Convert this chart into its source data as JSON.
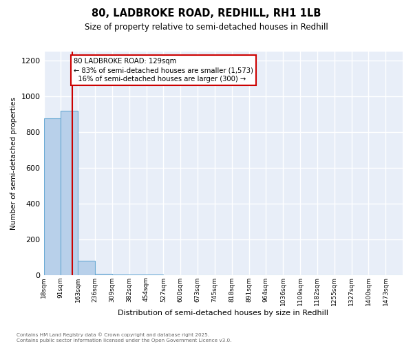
{
  "title1": "80, LADBROKE ROAD, REDHILL, RH1 1LB",
  "title2": "Size of property relative to semi-detached houses in Redhill",
  "xlabel": "Distribution of semi-detached houses by size in Redhill",
  "ylabel": "Number of semi-detached properties",
  "bin_labels": [
    "18sqm",
    "91sqm",
    "163sqm",
    "236sqm",
    "309sqm",
    "382sqm",
    "454sqm",
    "527sqm",
    "600sqm",
    "673sqm",
    "745sqm",
    "818sqm",
    "891sqm",
    "964sqm",
    "1036sqm",
    "1109sqm",
    "1182sqm",
    "1255sqm",
    "1327sqm",
    "1400sqm",
    "1473sqm"
  ],
  "bar_values": [
    875,
    920,
    80,
    5,
    2,
    1,
    1,
    0,
    0,
    0,
    0,
    0,
    0,
    0,
    0,
    0,
    0,
    0,
    0,
    0,
    0
  ],
  "bar_color": "#b8d0ea",
  "bar_edge_color": "#6aaad4",
  "red_line_x": 1.65,
  "red_line_color": "#cc0000",
  "annotation_text": "80 LADBROKE ROAD: 129sqm\n← 83% of semi-detached houses are smaller (1,573)\n  16% of semi-detached houses are larger (300) →",
  "annotation_box_color": "#ffffff",
  "annotation_box_edge": "#cc0000",
  "ylim": [
    0,
    1250
  ],
  "yticks": [
    0,
    200,
    400,
    600,
    800,
    1000,
    1200
  ],
  "background_color": "#e8eef8",
  "grid_color": "#ffffff",
  "footer_line1": "Contains HM Land Registry data © Crown copyright and database right 2025.",
  "footer_line2": "Contains public sector information licensed under the Open Government Licence v3.0."
}
